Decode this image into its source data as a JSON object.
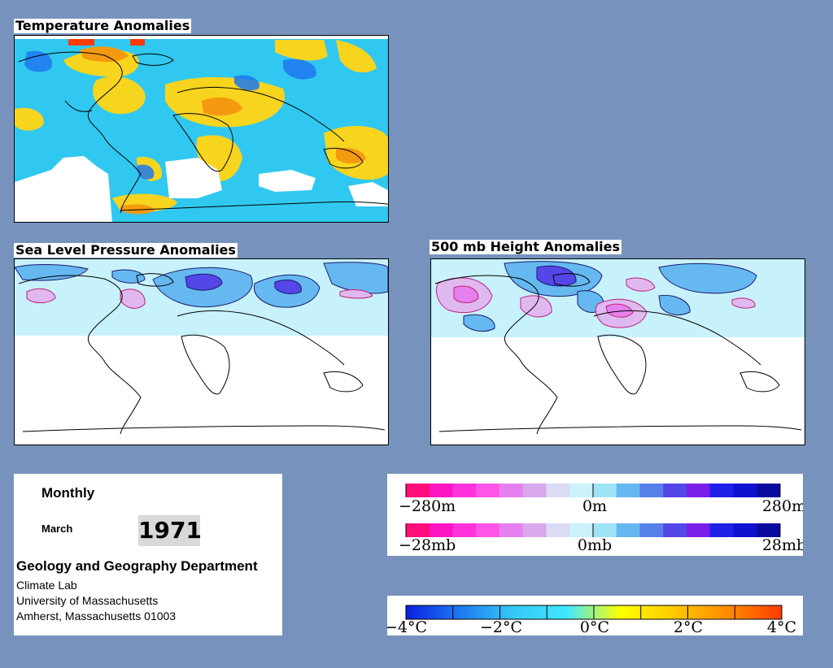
{
  "titles": {
    "temperature": "Temperature Anomalies",
    "slp": "Sea Level Pressure Anomalies",
    "height500": "500 mb Height Anomalies"
  },
  "info": {
    "frequency": "Monthly",
    "month": "March",
    "year": "1971",
    "department": "Geology and Geography Department",
    "lab": "Climate Lab",
    "university": "University of Massachusetts",
    "address": "Amherst, Massachusetts 01003"
  },
  "legends": {
    "height": {
      "labels": [
        "−280m",
        "0m",
        "280m"
      ],
      "colors": [
        "#ff0d7a",
        "#ff14c4",
        "#ff33dd",
        "#ff55e6",
        "#e680ee",
        "#d9a8ee",
        "#dcdcf6",
        "#ccf2fa",
        "#9fe3f7",
        "#66b8f0",
        "#5580ea",
        "#5546e8",
        "#7a1fe8",
        "#1f1fe8",
        "#1010cf",
        "#0a0aa0"
      ]
    },
    "pressure": {
      "labels": [
        "−28mb",
        "0mb",
        "28mb"
      ],
      "colors": [
        "#ff0d7a",
        "#ff14c4",
        "#ff33dd",
        "#ff55e6",
        "#e680ee",
        "#d9a8ee",
        "#dcdcf6",
        "#ccf2fa",
        "#9fe3f7",
        "#66b8f0",
        "#5580ea",
        "#5546e8",
        "#7a1fe8",
        "#1f1fe8",
        "#1010cf",
        "#0a0aa0"
      ]
    },
    "temperature": {
      "labels": [
        "−4°C",
        "−2°C",
        "0°C",
        "2°C",
        "4°C"
      ],
      "gradient": [
        "#0a20e0",
        "#1e78f0",
        "#36c8f5",
        "#40e8ff",
        "#ffff00",
        "#ffc800",
        "#ff8c00",
        "#ff3c00"
      ]
    }
  }
}
